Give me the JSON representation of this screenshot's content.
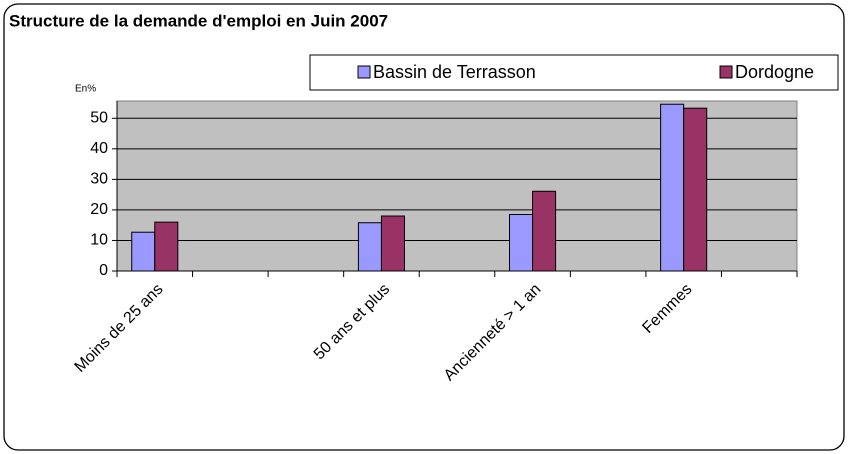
{
  "chart_data": {
    "type": "bar",
    "title": "Structure de la demande d'emploi en Juin 2007",
    "ylabel": "En%",
    "categories": [
      "Moins de  25 ans",
      null,
      null,
      "50 ans et plus",
      null,
      "Ancienneté  > 1 an",
      null,
      "Femmes",
      null
    ],
    "series": [
      {
        "name": "Bassin de Terrasson",
        "color": "#9999ff",
        "values": [
          12.7,
          null,
          null,
          15.8,
          null,
          18.5,
          null,
          54.6,
          null
        ]
      },
      {
        "name": "Dordogne",
        "color": "#993366",
        "values": [
          16,
          null,
          null,
          18,
          null,
          26.1,
          null,
          53.3,
          null
        ]
      }
    ],
    "ylim": [
      0,
      55
    ],
    "yticks": [
      0,
      10,
      20,
      30,
      40,
      50
    ],
    "grid": true
  }
}
